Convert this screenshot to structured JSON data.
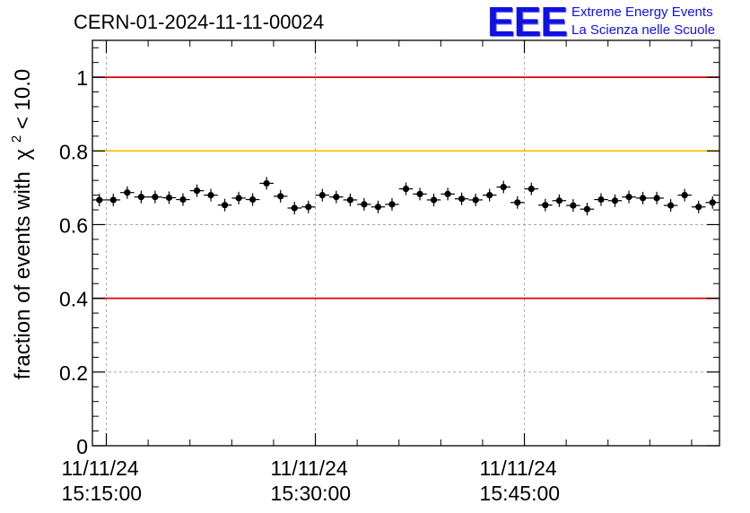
{
  "chart_data": {
    "type": "scatter",
    "title": "CERN-01-2024-11-11-00024",
    "ylabel": "fraction of events with",
    "ylabel_symbol": "χ",
    "ylabel_exponent": "2",
    "ylabel_tail": " < 10.0",
    "xlabel": "",
    "ylim": [
      0,
      1.1
    ],
    "grid": true,
    "y_ticks": [
      {
        "value": 0,
        "label": "0"
      },
      {
        "value": 0.2,
        "label": "0.2"
      },
      {
        "value": 0.4,
        "label": "0.4"
      },
      {
        "value": 0.6,
        "label": "0.6"
      },
      {
        "value": 0.8,
        "label": "0.8"
      },
      {
        "value": 1.0,
        "label": "1"
      }
    ],
    "x_range_minutes": [
      "15:14:00",
      "15:59:00"
    ],
    "x_ticks": [
      {
        "time": "15:15:00",
        "date": "11/11/24"
      },
      {
        "time": "15:30:00",
        "date": "11/11/24"
      },
      {
        "time": "15:45:00",
        "date": "11/11/24"
      }
    ],
    "reference_lines": [
      {
        "y": 1.0,
        "color": "#e00000"
      },
      {
        "y": 0.8,
        "color": "#ffc000"
      },
      {
        "y": 0.4,
        "color": "#e00000"
      }
    ],
    "points": {
      "bin_minutes": 1,
      "first_time": "15:14:00",
      "y": [
        0.667,
        0.667,
        0.687,
        0.675,
        0.675,
        0.673,
        0.668,
        0.692,
        0.68,
        0.653,
        0.672,
        0.668,
        0.712,
        0.677,
        0.645,
        0.648,
        0.68,
        0.675,
        0.667,
        0.655,
        0.648,
        0.655,
        0.697,
        0.683,
        0.667,
        0.683,
        0.67,
        0.667,
        0.68,
        0.702,
        0.66,
        0.697,
        0.653,
        0.665,
        0.652,
        0.642,
        0.668,
        0.665,
        0.675,
        0.672,
        0.672,
        0.652,
        0.68,
        0.648,
        0.66
      ]
    },
    "marker_color": "#000000"
  },
  "logo": {
    "mark": "EEE",
    "line1": "Extreme Energy Events",
    "line2": "La Scienza nelle Scuole",
    "color": "#1010e0"
  }
}
